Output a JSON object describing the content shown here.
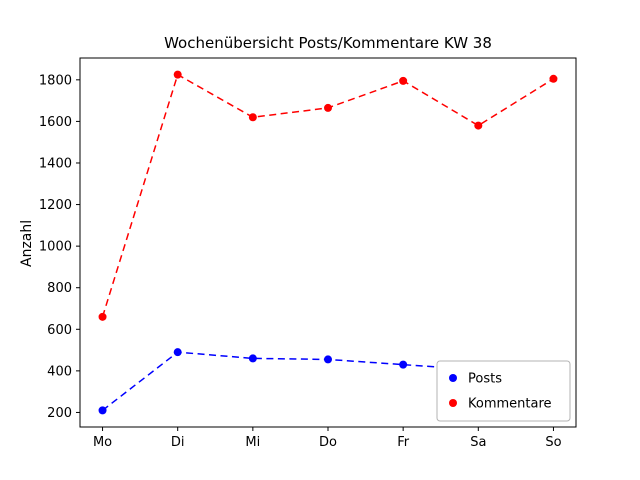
{
  "chart_data": {
    "type": "line",
    "title": "Wochenübersicht Posts/Kommentare KW 38",
    "xlabel": "",
    "ylabel": "Anzahl",
    "categories": [
      "Mo",
      "Di",
      "Mi",
      "Do",
      "Fr",
      "Sa",
      "So"
    ],
    "series": [
      {
        "name": "Posts",
        "color": "#0000ff",
        "marker": "circle",
        "line_style": "dashed",
        "values": [
          210,
          490,
          460,
          455,
          430,
          405,
          420
        ]
      },
      {
        "name": "Kommentare",
        "color": "#ff0000",
        "marker": "circle",
        "line_style": "dashed",
        "values": [
          660,
          1825,
          1620,
          1665,
          1795,
          1580,
          1805
        ]
      }
    ],
    "yticks": [
      200,
      400,
      600,
      800,
      1000,
      1200,
      1400,
      1600,
      1800
    ],
    "ylim": [
      130,
      1905
    ],
    "grid": false,
    "legend_position": "lower right",
    "legend_labels": [
      "Posts",
      "Kommentare"
    ]
  }
}
